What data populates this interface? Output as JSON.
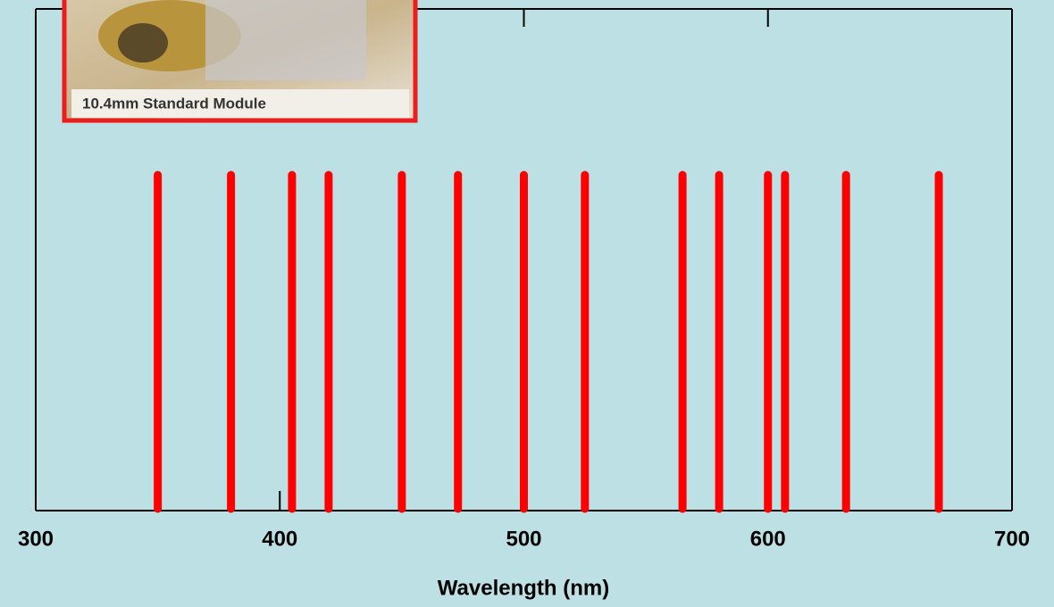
{
  "chart_data": {
    "type": "spectrum",
    "xlabel": "Wavelength (nm)",
    "inset_caption": "10.4mm Standard Module",
    "x": [
      350,
      380,
      405,
      420,
      450,
      473,
      500,
      525,
      565,
      580,
      600,
      607,
      632,
      670
    ],
    "color": "#ff0000",
    "xlim": [
      300,
      700
    ],
    "xticks": [
      300,
      400,
      500,
      600,
      700
    ]
  }
}
